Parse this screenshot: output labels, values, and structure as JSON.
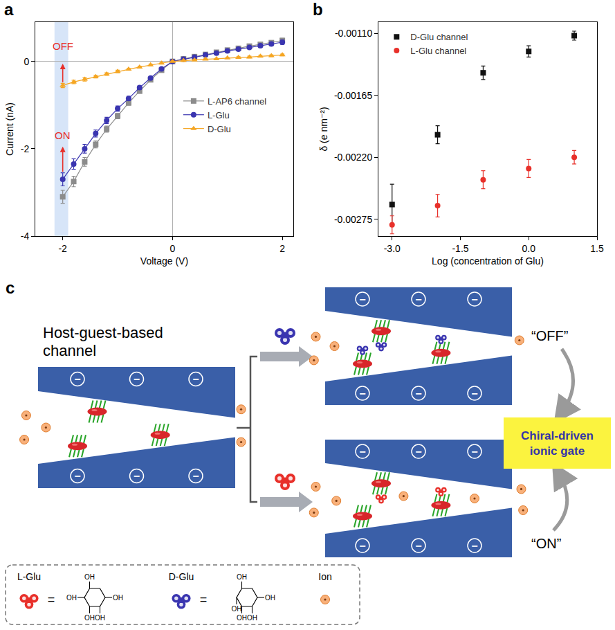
{
  "chart_data": [
    {
      "type": "line",
      "panel_label": "a",
      "x_label": "Voltage (V)",
      "y_label": "Current (nA)",
      "x": [
        -2,
        -1.8,
        -1.6,
        -1.4,
        -1.2,
        -1.0,
        -0.8,
        -0.6,
        -0.4,
        -0.2,
        0,
        0.2,
        0.4,
        0.6,
        0.8,
        1.0,
        1.2,
        1.4,
        1.6,
        1.8,
        2.0
      ],
      "series": [
        {
          "name": "L-AP6 channel",
          "color": "#8c8c8c",
          "marker": "square",
          "values": [
            -3.1,
            -2.75,
            -2.3,
            -1.9,
            -1.55,
            -1.25,
            -0.95,
            -0.68,
            -0.42,
            -0.2,
            0,
            0.06,
            0.11,
            0.16,
            0.21,
            0.26,
            0.3,
            0.35,
            0.39,
            0.43,
            0.48
          ],
          "error": [
            0.15,
            0.12,
            0.1,
            0.08,
            0.07,
            0.06,
            0.05,
            0.04,
            0.03,
            0.02,
            0.01,
            0.02,
            0.02,
            0.02,
            0.03,
            0.03,
            0.03,
            0.04,
            0.04,
            0.05,
            0.05
          ]
        },
        {
          "name": "L-Glu",
          "color": "#3a35b0",
          "marker": "circle",
          "values": [
            -2.7,
            -2.35,
            -2.0,
            -1.65,
            -1.35,
            -1.08,
            -0.85,
            -0.6,
            -0.38,
            -0.17,
            0,
            0.05,
            0.1,
            0.15,
            0.19,
            0.24,
            0.28,
            0.32,
            0.36,
            0.4,
            0.44
          ],
          "error": [
            0.15,
            0.12,
            0.1,
            0.08,
            0.07,
            0.06,
            0.05,
            0.04,
            0.03,
            0.02,
            0.01,
            0.02,
            0.02,
            0.02,
            0.03,
            0.03,
            0.03,
            0.03,
            0.04,
            0.04,
            0.05
          ]
        },
        {
          "name": "D-Glu",
          "color": "#f5a623",
          "marker": "triangle",
          "values": [
            -0.55,
            -0.47,
            -0.41,
            -0.35,
            -0.29,
            -0.23,
            -0.18,
            -0.13,
            -0.08,
            -0.04,
            0,
            0.02,
            0.03,
            0.05,
            0.06,
            0.08,
            0.09,
            0.1,
            0.12,
            0.13,
            0.15
          ],
          "error": [
            0.05,
            0.04,
            0.04,
            0.03,
            0.03,
            0.03,
            0.02,
            0.02,
            0.02,
            0.01,
            0.01,
            0.01,
            0.01,
            0.01,
            0.01,
            0.01,
            0.02,
            0.02,
            0.02,
            0.02,
            0.02
          ]
        }
      ],
      "xlim": [
        -2.5,
        2.2
      ],
      "xticks": [
        -2,
        0,
        2
      ],
      "ylim": [
        -4,
        0.9
      ],
      "yticks": [
        -4,
        -2,
        0
      ],
      "legend": "right",
      "highlight_x": [
        -2.15,
        -1.9
      ],
      "annotations": [
        {
          "text": "OFF",
          "x": -2,
          "y": 0.35,
          "arrow_from": -0.5,
          "arrow_to": -0.05,
          "color": "#e8302a"
        },
        {
          "text": "ON",
          "x": -2,
          "y": -1.7,
          "arrow_from": -2.55,
          "arrow_to": -1.95,
          "color": "#e8302a"
        }
      ]
    },
    {
      "type": "scatter",
      "panel_label": "b",
      "x_label": "Log (concentration of Glu)",
      "y_label": "δ (e nm⁻²)",
      "x": [
        -3,
        -2,
        -1,
        0,
        1
      ],
      "series": [
        {
          "name": "D-Glu channel",
          "color": "#111111",
          "marker": "square",
          "values": [
            -0.00262,
            -0.002,
            -0.00145,
            -0.00126,
            -0.00112
          ],
          "error": [
            0.00018,
            8e-05,
            6e-05,
            5e-05,
            4e-05
          ]
        },
        {
          "name": "L-Glu channel",
          "color": "#e8302a",
          "marker": "circle",
          "values": [
            -0.0028,
            -0.00263,
            -0.0024,
            -0.0023,
            -0.0022
          ],
          "error": [
            8e-05,
            0.0001,
            8e-05,
            8e-05,
            6e-05
          ]
        }
      ],
      "xlim": [
        -3.3,
        1.5
      ],
      "xticks": [
        {
          "value": -3,
          "label": "-3.0"
        },
        -1.5,
        {
          "value": 0,
          "label": "0.0"
        },
        1.5
      ],
      "ylim": [
        -0.0029,
        -0.001
      ],
      "yticks": [
        -0.00275,
        {
          "value": -0.0022,
          "label": "-0.00220"
        },
        -0.00165,
        {
          "value": -0.0011,
          "label": "-0.00110"
        }
      ],
      "legend": "top left"
    }
  ],
  "diagram": {
    "panel_label": "c",
    "title": "Host-guest-based channel",
    "charge": "−",
    "branches": [
      {
        "guest_color": "#3a35b0",
        "result": "“OFF”"
      },
      {
        "guest_color": "#e8302a",
        "result": "“ON”"
      }
    ],
    "outcome": "Chiral-driven ionic gate",
    "key": [
      {
        "label": "L-Glu",
        "color": "#e8302a",
        "symbol": "=",
        "structure": [
          "OH",
          "OH",
          "OH",
          "OH",
          "OH"
        ]
      },
      {
        "label": "D-Glu",
        "color": "#3a35b0",
        "symbol": "=",
        "structure": [
          "OH",
          "OH",
          "OH",
          "OH",
          "OH"
        ]
      },
      {
        "label": "Ion"
      }
    ]
  }
}
